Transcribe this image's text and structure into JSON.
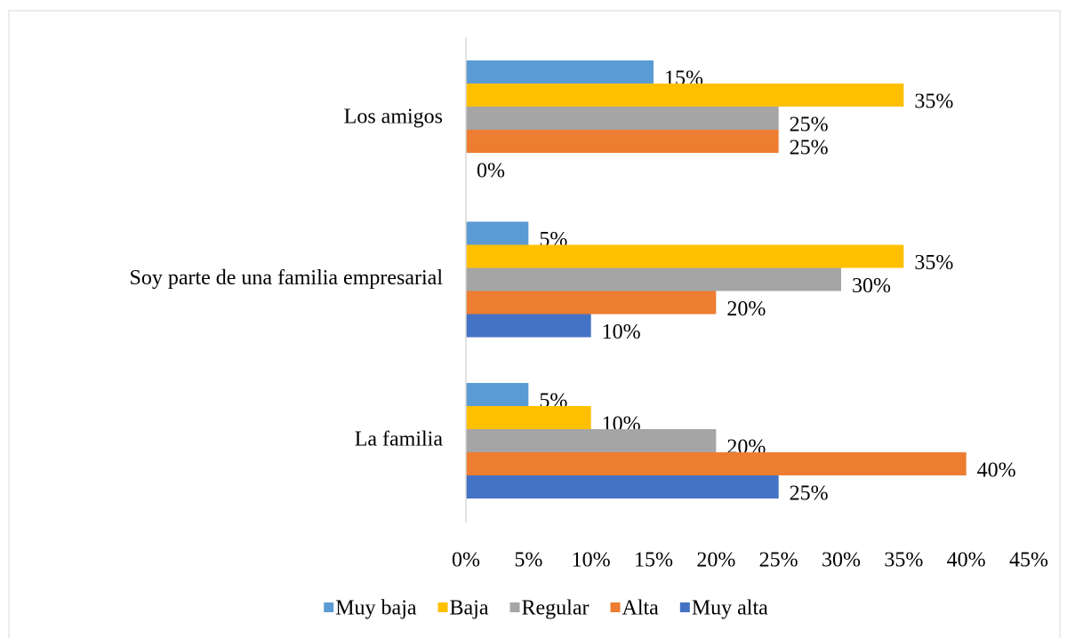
{
  "chart_data": {
    "type": "bar",
    "orientation": "horizontal",
    "categories": [
      "Los amigos",
      "Soy parte de una familia empresarial",
      "La familia"
    ],
    "series": [
      {
        "name": "Muy baja",
        "color": "#5b9bd5",
        "values": [
          15,
          5,
          5
        ],
        "value_labels": [
          "15%",
          "5%",
          "5%"
        ]
      },
      {
        "name": "Baja",
        "color": "#ffc000",
        "values": [
          35,
          35,
          10
        ],
        "value_labels": [
          "35%",
          "35%",
          "10%"
        ]
      },
      {
        "name": "Regular",
        "color": "#a5a5a5",
        "values": [
          25,
          30,
          20
        ],
        "value_labels": [
          "25%",
          "30%",
          "20%"
        ]
      },
      {
        "name": "Alta",
        "color": "#ed7d31",
        "values": [
          25,
          20,
          40
        ],
        "value_labels": [
          "25%",
          "20%",
          "40%"
        ]
      },
      {
        "name": "Muy alta",
        "color": "#4472c4",
        "values": [
          0,
          10,
          25
        ],
        "value_labels": [
          "0%",
          "10%",
          "25%"
        ]
      }
    ],
    "xlim": [
      0,
      45
    ],
    "xticks": [
      {
        "value": 0,
        "label": "0%"
      },
      {
        "value": 5,
        "label": "5%"
      },
      {
        "value": 10,
        "label": "10%"
      },
      {
        "value": 15,
        "label": "15%"
      },
      {
        "value": 20,
        "label": "20%"
      },
      {
        "value": 25,
        "label": "25%"
      },
      {
        "value": 30,
        "label": "30%"
      },
      {
        "value": 35,
        "label": "35%"
      },
      {
        "value": 40,
        "label": "40%"
      },
      {
        "value": 45,
        "label": "45%"
      }
    ],
    "grid": false,
    "legend": "bottom"
  }
}
